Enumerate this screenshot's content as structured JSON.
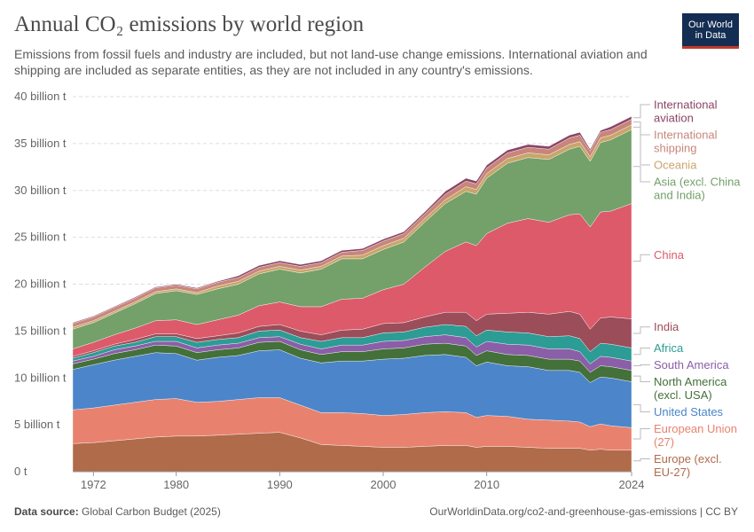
{
  "header": {
    "title": "Annual CO₂ emissions by world region",
    "subtitle": "Emissions from fossil fuels and industry are included, but not land-use change emissions. International aviation and shipping are included as separate entities, as they are not included in any country's emissions.",
    "logo_line1": "Our World",
    "logo_line2": "in Data"
  },
  "footer": {
    "source_label": "Data source:",
    "source": "Global Carbon Budget (2025)",
    "url": "OurWorldinData.org/co2-and-greenhouse-gas-emissions | CC BY"
  },
  "chart_data": {
    "type": "area",
    "stacked": true,
    "x_min": 1970,
    "x_max": 2024,
    "ylim": [
      0,
      40
    ],
    "x_ticks": [
      1972,
      1980,
      1990,
      2000,
      2010,
      2024
    ],
    "y_ticks": [
      {
        "value": 0,
        "label": "0 t"
      },
      {
        "value": 5,
        "label": "5 billion t"
      },
      {
        "value": 10,
        "label": "10 billion t"
      },
      {
        "value": 15,
        "label": "15 billion t"
      },
      {
        "value": 20,
        "label": "20 billion t"
      },
      {
        "value": 25,
        "label": "25 billion t"
      },
      {
        "value": 30,
        "label": "30 billion t"
      },
      {
        "value": 35,
        "label": "35 billion t"
      },
      {
        "value": 40,
        "label": "40 billion t"
      }
    ],
    "grid": true,
    "legend_placement": "right",
    "x": [
      1970,
      1972,
      1974,
      1976,
      1978,
      1980,
      1982,
      1984,
      1986,
      1988,
      1990,
      1992,
      1994,
      1996,
      1998,
      2000,
      2002,
      2004,
      2006,
      2008,
      2009,
      2010,
      2012,
      2014,
      2016,
      2018,
      2019,
      2020,
      2021,
      2022,
      2024
    ],
    "series": [
      {
        "name": "Europe (excl. EU-27)",
        "legend_lines": [
          "Europe (excl.",
          "EU-27)"
        ],
        "color": "#b06b4a",
        "values": [
          3.0,
          3.1,
          3.3,
          3.5,
          3.7,
          3.8,
          3.8,
          3.9,
          4.0,
          4.1,
          4.2,
          3.6,
          2.9,
          2.8,
          2.7,
          2.6,
          2.6,
          2.7,
          2.8,
          2.8,
          2.6,
          2.7,
          2.7,
          2.6,
          2.5,
          2.5,
          2.5,
          2.3,
          2.4,
          2.3,
          2.3
        ]
      },
      {
        "name": "European Union (27)",
        "legend_lines": [
          "European Union",
          "(27)"
        ],
        "color": "#e8826f",
        "values": [
          3.6,
          3.7,
          3.8,
          3.9,
          4.0,
          4.0,
          3.6,
          3.6,
          3.7,
          3.8,
          3.7,
          3.5,
          3.4,
          3.5,
          3.5,
          3.4,
          3.5,
          3.6,
          3.6,
          3.5,
          3.2,
          3.3,
          3.2,
          3.0,
          3.0,
          2.9,
          2.8,
          2.5,
          2.7,
          2.6,
          2.4
        ]
      },
      {
        "name": "United States",
        "legend_lines": [
          "United States"
        ],
        "color": "#4c85c9",
        "values": [
          4.3,
          4.6,
          4.8,
          4.9,
          5.0,
          4.8,
          4.5,
          4.7,
          4.7,
          5.0,
          5.1,
          5.0,
          5.3,
          5.5,
          5.6,
          6.0,
          6.0,
          6.1,
          6.1,
          5.9,
          5.5,
          5.7,
          5.4,
          5.6,
          5.3,
          5.4,
          5.3,
          4.7,
          5.0,
          5.1,
          4.9
        ]
      },
      {
        "name": "North America (excl. USA)",
        "legend_lines": [
          "North America",
          "(excl. USA)"
        ],
        "color": "#44703a",
        "values": [
          0.6,
          0.6,
          0.7,
          0.7,
          0.8,
          0.8,
          0.8,
          0.8,
          0.8,
          0.9,
          0.9,
          0.9,
          0.9,
          1.0,
          1.0,
          1.1,
          1.1,
          1.2,
          1.2,
          1.2,
          1.1,
          1.2,
          1.2,
          1.2,
          1.2,
          1.2,
          1.2,
          1.1,
          1.2,
          1.2,
          1.2
        ]
      },
      {
        "name": "South America",
        "legend_lines": [
          "South America"
        ],
        "color": "#8b5ea8",
        "values": [
          0.3,
          0.3,
          0.4,
          0.4,
          0.4,
          0.5,
          0.5,
          0.5,
          0.5,
          0.5,
          0.5,
          0.6,
          0.6,
          0.7,
          0.7,
          0.8,
          0.8,
          0.8,
          0.9,
          0.9,
          0.9,
          1.0,
          1.1,
          1.1,
          1.1,
          1.1,
          1.0,
          0.9,
          1.0,
          1.0,
          1.0
        ]
      },
      {
        "name": "Africa",
        "legend_lines": [
          "Africa"
        ],
        "color": "#2c9c94",
        "values": [
          0.3,
          0.4,
          0.4,
          0.4,
          0.5,
          0.5,
          0.6,
          0.6,
          0.6,
          0.7,
          0.7,
          0.7,
          0.8,
          0.8,
          0.8,
          0.9,
          0.9,
          1.0,
          1.1,
          1.2,
          1.2,
          1.2,
          1.3,
          1.3,
          1.3,
          1.4,
          1.4,
          1.3,
          1.4,
          1.4,
          1.4
        ]
      },
      {
        "name": "India",
        "legend_lines": [
          "India"
        ],
        "color": "#9b4d5a",
        "values": [
          0.2,
          0.2,
          0.2,
          0.3,
          0.3,
          0.3,
          0.4,
          0.4,
          0.5,
          0.5,
          0.6,
          0.7,
          0.7,
          0.8,
          0.9,
          1.0,
          1.0,
          1.1,
          1.3,
          1.5,
          1.6,
          1.7,
          2.0,
          2.2,
          2.4,
          2.6,
          2.6,
          2.4,
          2.7,
          2.9,
          3.1
        ]
      },
      {
        "name": "China",
        "legend_lines": [
          "China"
        ],
        "color": "#dc5a6a",
        "values": [
          0.8,
          0.9,
          1.0,
          1.2,
          1.4,
          1.5,
          1.5,
          1.7,
          1.9,
          2.2,
          2.4,
          2.6,
          3.0,
          3.3,
          3.3,
          3.6,
          4.1,
          5.3,
          6.5,
          7.5,
          8.0,
          8.6,
          9.6,
          10.0,
          9.8,
          10.3,
          10.7,
          10.9,
          11.3,
          11.3,
          12.3
        ]
      },
      {
        "name": "Asia (excl. China and India)",
        "legend_lines": [
          "Asia (excl. China",
          "and India)"
        ],
        "color": "#74a06a",
        "values": [
          2.1,
          2.1,
          2.3,
          2.6,
          2.9,
          3.1,
          3.2,
          3.3,
          3.3,
          3.4,
          3.5,
          3.6,
          4.0,
          4.3,
          4.2,
          4.3,
          4.5,
          4.8,
          5.1,
          5.4,
          5.5,
          5.9,
          6.4,
          6.5,
          6.7,
          7.0,
          7.2,
          7.0,
          7.4,
          7.6,
          7.9
        ]
      },
      {
        "name": "Oceania",
        "legend_lines": [
          "Oceania"
        ],
        "color": "#c9a56b",
        "values": [
          0.2,
          0.2,
          0.2,
          0.2,
          0.2,
          0.2,
          0.2,
          0.3,
          0.3,
          0.3,
          0.3,
          0.3,
          0.3,
          0.3,
          0.4,
          0.4,
          0.4,
          0.4,
          0.4,
          0.5,
          0.5,
          0.5,
          0.5,
          0.5,
          0.5,
          0.5,
          0.5,
          0.5,
          0.5,
          0.5,
          0.5
        ]
      },
      {
        "name": "International shipping",
        "legend_lines": [
          "International",
          "shipping"
        ],
        "color": "#c8867a",
        "values": [
          0.4,
          0.4,
          0.4,
          0.4,
          0.4,
          0.4,
          0.4,
          0.4,
          0.4,
          0.4,
          0.4,
          0.4,
          0.4,
          0.4,
          0.5,
          0.5,
          0.5,
          0.5,
          0.6,
          0.6,
          0.6,
          0.6,
          0.6,
          0.6,
          0.6,
          0.7,
          0.7,
          0.6,
          0.6,
          0.6,
          0.6
        ]
      },
      {
        "name": "International aviation",
        "legend_lines": [
          "International",
          "aviation"
        ],
        "color": "#8a4468",
        "values": [
          0.1,
          0.1,
          0.1,
          0.1,
          0.1,
          0.1,
          0.1,
          0.1,
          0.2,
          0.2,
          0.2,
          0.2,
          0.2,
          0.2,
          0.2,
          0.2,
          0.2,
          0.2,
          0.3,
          0.3,
          0.3,
          0.3,
          0.3,
          0.3,
          0.3,
          0.3,
          0.3,
          0.2,
          0.2,
          0.3,
          0.3
        ]
      }
    ]
  }
}
